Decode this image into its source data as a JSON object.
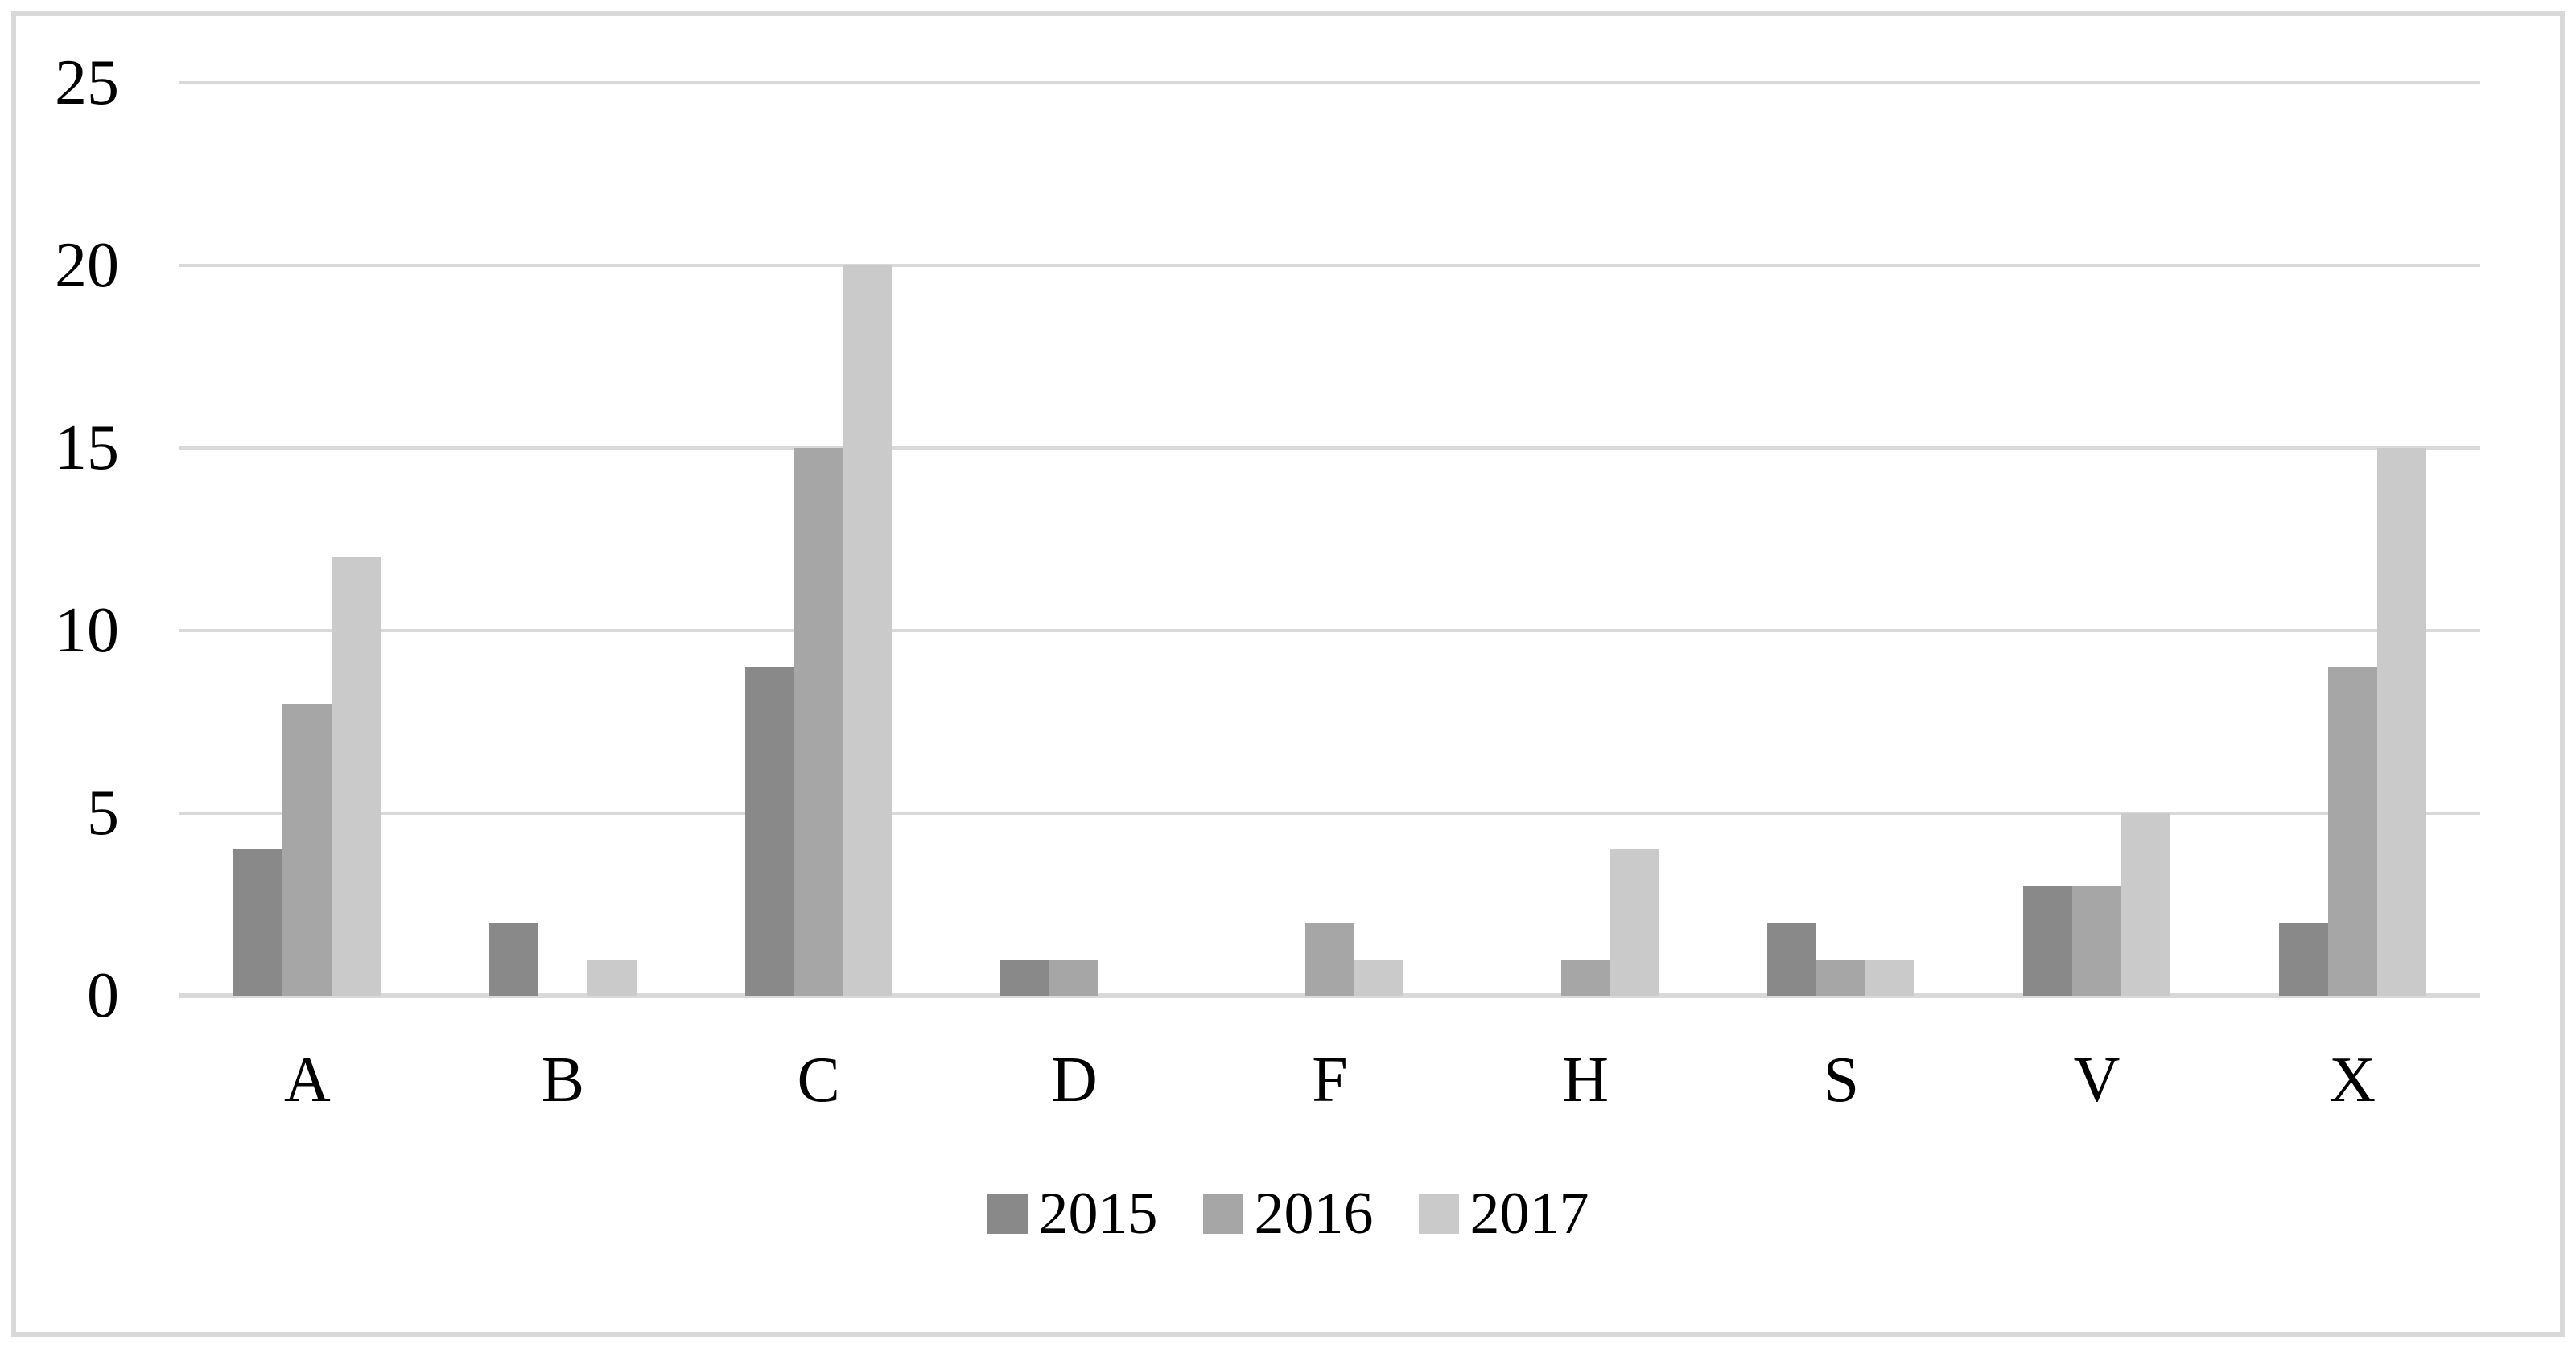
{
  "chart_data": {
    "type": "bar",
    "title": "",
    "xlabel": "",
    "ylabel": "",
    "categories": [
      "A",
      "B",
      "C",
      "D",
      "F",
      "H",
      "S",
      "V",
      "X"
    ],
    "series": [
      {
        "name": "2015",
        "color": "#898989",
        "values": [
          4,
          2,
          9,
          1,
          0,
          0,
          2,
          3,
          2
        ]
      },
      {
        "name": "2016",
        "color": "#a6a6a6",
        "values": [
          8,
          0,
          15,
          1,
          2,
          1,
          1,
          3,
          9
        ]
      },
      {
        "name": "2017",
        "color": "#cacaca",
        "values": [
          12,
          1,
          20,
          0,
          1,
          4,
          1,
          5,
          15
        ]
      }
    ],
    "yticks": [
      0,
      5,
      10,
      15,
      20,
      25
    ],
    "ylim": [
      0,
      25
    ],
    "grid": true,
    "legend_position": "bottom-center",
    "background_color": "#ffffff",
    "gridline_color": "#d9d9d9",
    "axis_line_color": "#d9d9d9",
    "frame_border_color": "#d9d9d9",
    "tick_label_color": "#000000"
  }
}
